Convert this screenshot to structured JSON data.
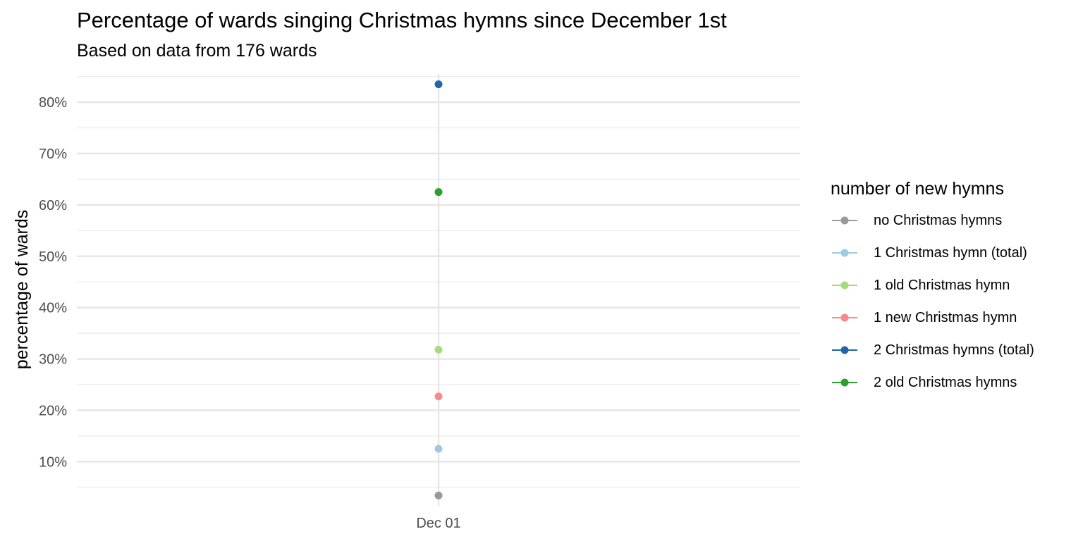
{
  "chart_data": {
    "type": "scatter",
    "title": "Percentage of wards singing Christmas hymns since December 1st",
    "subtitle": "Based on data from 176 wards",
    "xlabel": "",
    "ylabel": "percentage of wards",
    "x_categories": [
      "Dec 01"
    ],
    "y_ticks": [
      10,
      20,
      30,
      40,
      50,
      60,
      70,
      80
    ],
    "y_tick_labels": [
      "10%",
      "20%",
      "30%",
      "40%",
      "50%",
      "60%",
      "70%",
      "80%"
    ],
    "ylim": [
      1.4,
      85.5
    ],
    "grid": true,
    "legend": {
      "title": "number of new hymns",
      "placement": "right"
    },
    "series": [
      {
        "name": "no Christmas hymns",
        "color": "#999999",
        "x": "Dec 01",
        "value": 3.4
      },
      {
        "name": "1 Christmas hymn (total)",
        "color": "#9ecae1",
        "x": "Dec 01",
        "value": 12.5
      },
      {
        "name": "1 old Christmas hymn",
        "color": "#a6dd7c",
        "x": "Dec 01",
        "value": 31.8
      },
      {
        "name": "1 new Christmas hymn",
        "color": "#f78a8a",
        "x": "Dec 01",
        "value": 22.7
      },
      {
        "name": "2 Christmas hymns (total)",
        "color": "#2166ac",
        "x": "Dec 01",
        "value": 83.5
      },
      {
        "name": "2 old Christmas hymns",
        "color": "#2ca02c",
        "x": "Dec 01",
        "value": 62.5
      }
    ]
  }
}
